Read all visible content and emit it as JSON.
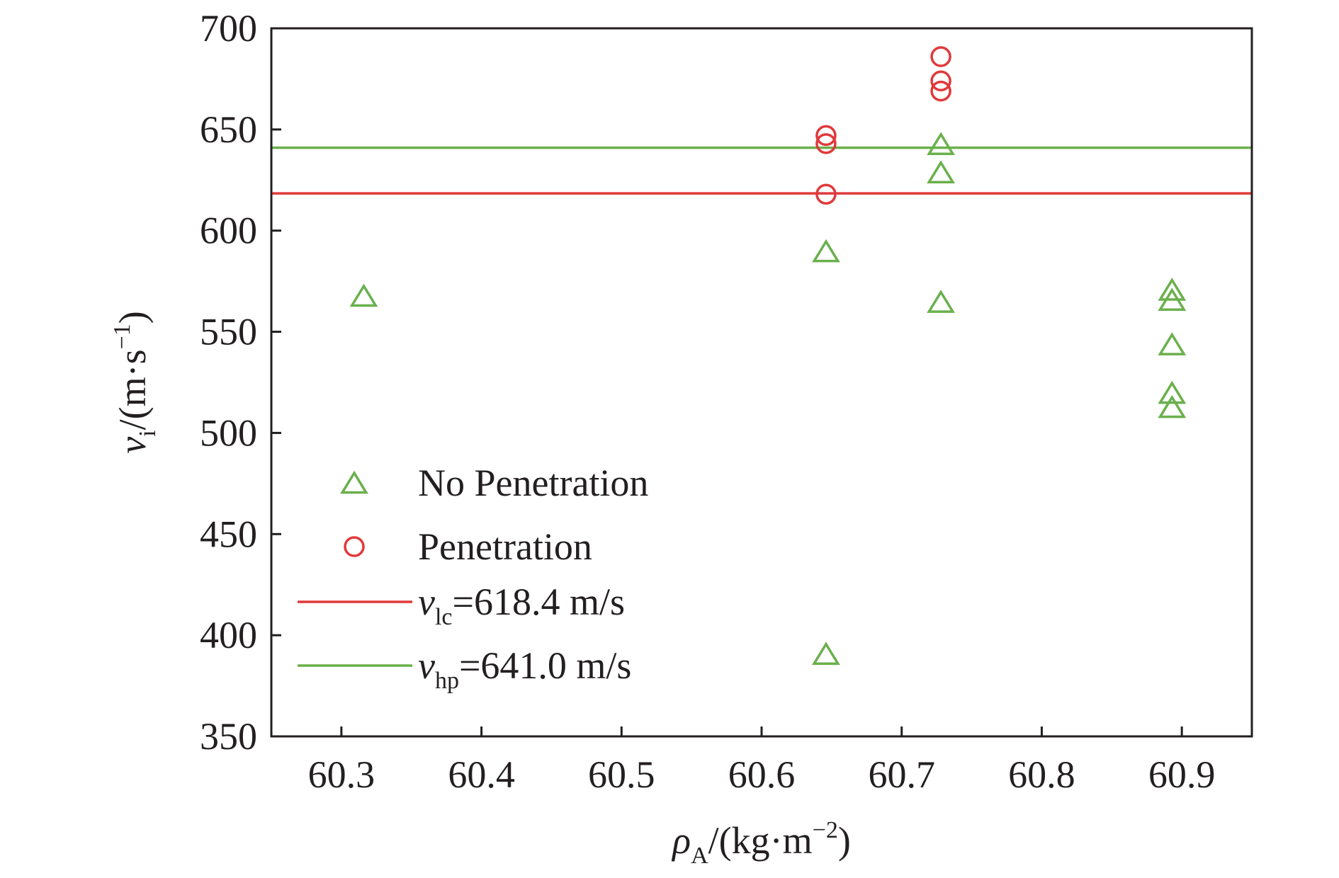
{
  "chart_data": {
    "type": "scatter",
    "xlabel": {
      "main": "ρ",
      "sub": "A",
      "unit_open": "/(kg·m",
      "sup": "−2",
      "unit_close": ")"
    },
    "ylabel": {
      "main": "v",
      "sub": "i",
      "unit_open": "/(m·s",
      "sup": "−1",
      "unit_close": ")"
    },
    "xlim": [
      60.25,
      60.95
    ],
    "ylim": [
      350,
      700
    ],
    "xticks": [
      "60.3",
      "60.4",
      "60.5",
      "60.6",
      "60.7",
      "60.8",
      "60.9"
    ],
    "yticks": [
      "350",
      "400",
      "450",
      "500",
      "550",
      "600",
      "650",
      "700"
    ],
    "grid": false,
    "legend_position": "left-lower",
    "series": [
      {
        "name": "No Penetration",
        "marker": "triangle",
        "color": "#6ab04c",
        "points": [
          {
            "x": 60.316,
            "y": 567
          },
          {
            "x": 60.646,
            "y": 589
          },
          {
            "x": 60.646,
            "y": 390
          },
          {
            "x": 60.728,
            "y": 642
          },
          {
            "x": 60.728,
            "y": 628
          },
          {
            "x": 60.728,
            "y": 564
          },
          {
            "x": 60.893,
            "y": 570
          },
          {
            "x": 60.893,
            "y": 565
          },
          {
            "x": 60.893,
            "y": 543
          },
          {
            "x": 60.893,
            "y": 519
          },
          {
            "x": 60.893,
            "y": 512
          }
        ]
      },
      {
        "name": "Penetration",
        "marker": "circle",
        "color": "#e0393b",
        "points": [
          {
            "x": 60.646,
            "y": 647
          },
          {
            "x": 60.646,
            "y": 643
          },
          {
            "x": 60.646,
            "y": 618
          },
          {
            "x": 60.728,
            "y": 686
          },
          {
            "x": 60.728,
            "y": 674
          },
          {
            "x": 60.728,
            "y": 669
          }
        ]
      }
    ],
    "reference_lines": [
      {
        "name": "v_lc",
        "label_main": "v",
        "label_sub": "lc",
        "label_rest": "=618.4 m/s",
        "y": 618.4,
        "color": "#e0393b"
      },
      {
        "name": "v_hp",
        "label_main": "v",
        "label_sub": "hp",
        "label_rest": "=641.0 m/s",
        "y": 641.0,
        "color": "#6ab04c"
      }
    ],
    "legend": [
      {
        "label": "No Penetration",
        "kind": "triangle",
        "color": "#6ab04c"
      },
      {
        "label": "Penetration",
        "kind": "circle",
        "color": "#e0393b"
      },
      {
        "main": "v",
        "sub": "lc",
        "rest": "=618.4 m/s",
        "kind": "line",
        "color": "#e0393b"
      },
      {
        "main": "v",
        "sub": "hp",
        "rest": "=641.0 m/s",
        "kind": "line",
        "color": "#6ab04c"
      }
    ]
  }
}
